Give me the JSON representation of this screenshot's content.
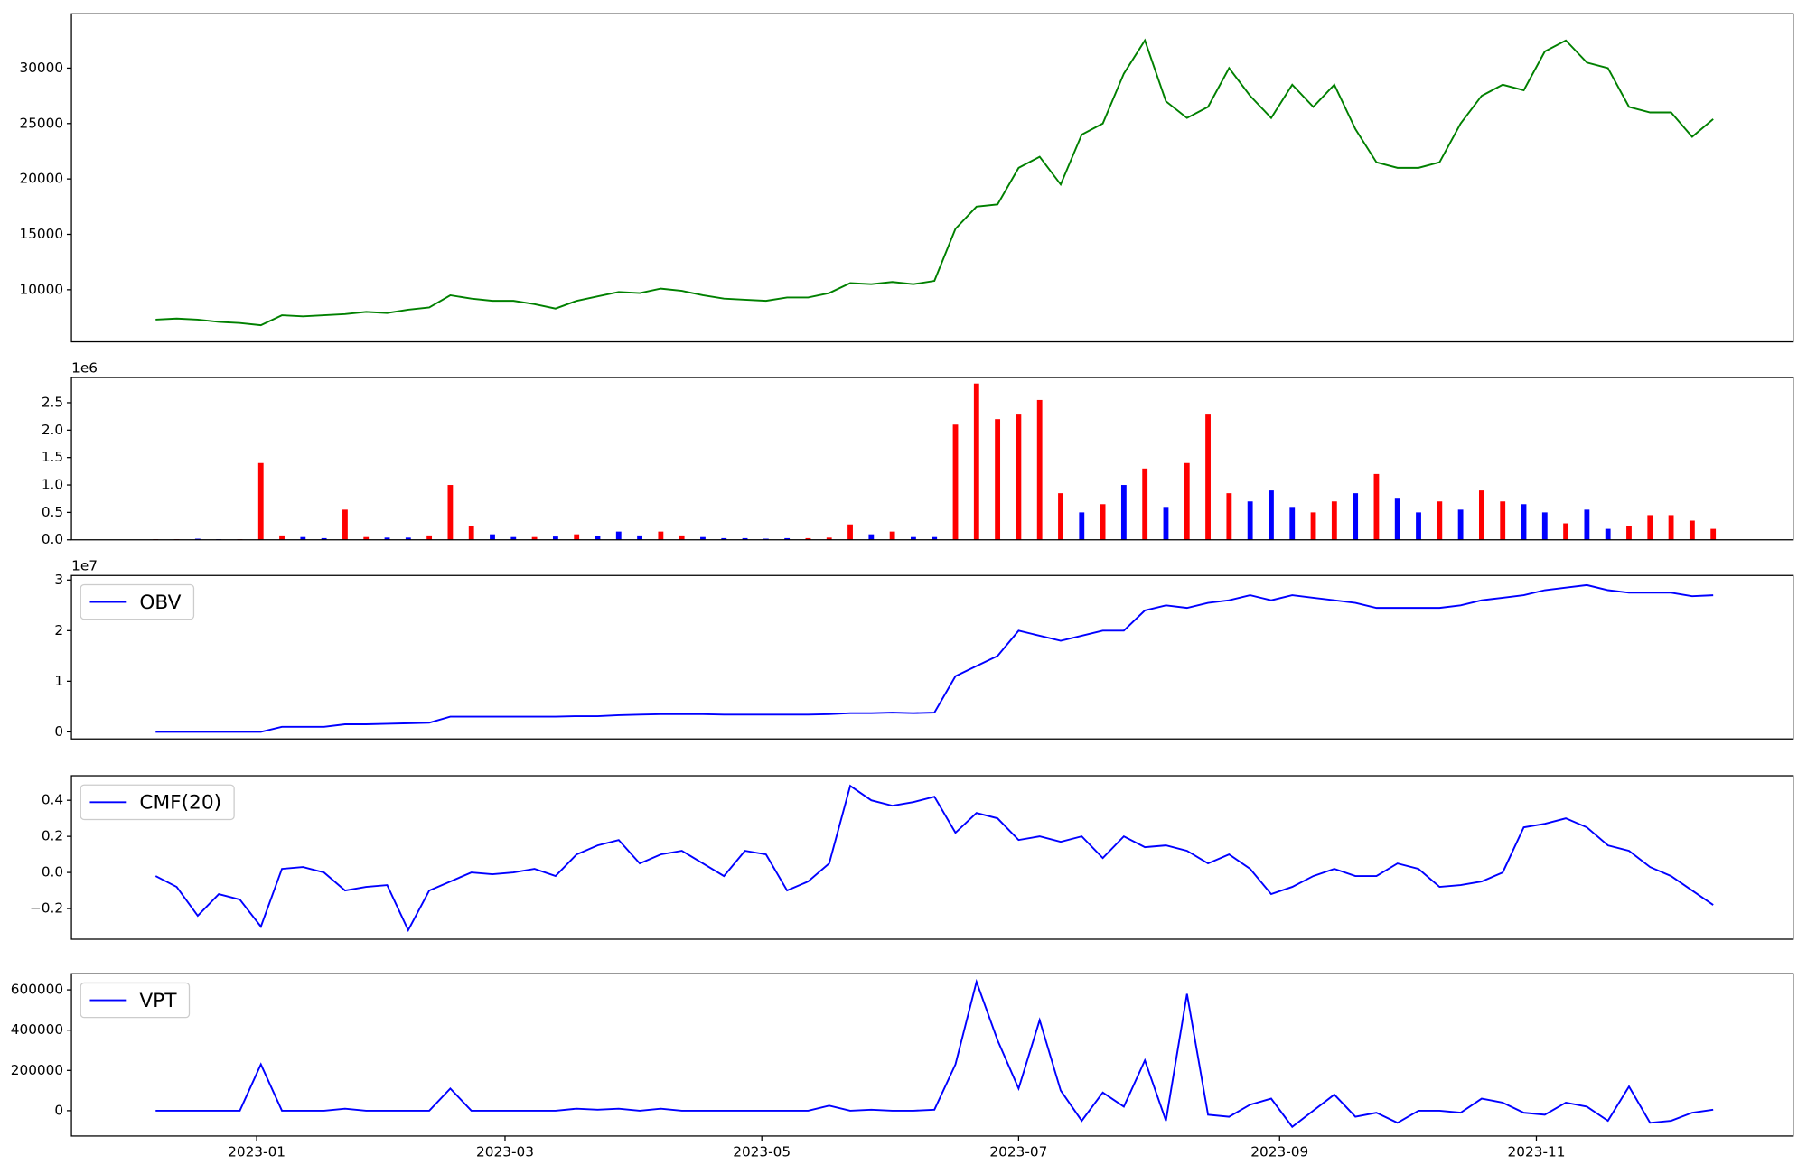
{
  "chart_data": [
    {
      "type": "line",
      "xlim": [
        -4,
        77.8
      ],
      "ylim": [
        5300,
        34900
      ],
      "yticks": [
        10000,
        15000,
        20000,
        25000,
        30000
      ],
      "series": [
        {
          "color": "#008000",
          "values": [
            7300,
            7400,
            7300,
            7100,
            7000,
            6800,
            7700,
            7600,
            7700,
            7800,
            8000,
            7900,
            8200,
            8400,
            9500,
            9200,
            9000,
            9000,
            8700,
            8300,
            9000,
            9400,
            9800,
            9700,
            10100,
            9900,
            9500,
            9200,
            9100,
            9000,
            9300,
            9300,
            9700,
            10600,
            10500,
            10700,
            10500,
            10800,
            15500,
            17500,
            17700,
            21000,
            22000,
            19500,
            24000,
            25000,
            29500,
            32500,
            27000,
            25500,
            26500,
            30000,
            27500,
            25500,
            28500,
            26500,
            28500,
            24500,
            21500,
            21000,
            21000,
            21500,
            25000,
            27500,
            28500,
            28000,
            31500,
            32500,
            30500,
            30000,
            26500,
            26000,
            26000,
            23800,
            25400
          ]
        }
      ]
    },
    {
      "type": "bar",
      "xlim": [
        -4,
        77.8
      ],
      "ylim": [
        0,
        2960000
      ],
      "offset_label": "1e6",
      "yticks": [
        {
          "value": 0,
          "label": "0.0"
        },
        {
          "value": 500000,
          "label": "0.5"
        },
        {
          "value": 1000000,
          "label": "1.0"
        },
        {
          "value": 1500000,
          "label": "1.5"
        },
        {
          "value": 2000000,
          "label": "2.0"
        },
        {
          "value": 2500000,
          "label": "2.5"
        }
      ],
      "values": [
        10000,
        10000,
        20000,
        10000,
        10000,
        1400000,
        80000,
        50000,
        30000,
        550000,
        50000,
        40000,
        40000,
        80000,
        1000000,
        250000,
        100000,
        50000,
        50000,
        60000,
        100000,
        70000,
        150000,
        80000,
        150000,
        80000,
        50000,
        30000,
        30000,
        20000,
        30000,
        30000,
        40000,
        280000,
        100000,
        150000,
        50000,
        50000,
        2100000,
        2850000,
        2200000,
        2300000,
        2550000,
        850000,
        500000,
        650000,
        1000000,
        1300000,
        600000,
        1400000,
        2300000,
        850000,
        700000,
        900000,
        600000,
        500000,
        700000,
        850000,
        1200000,
        750000,
        500000,
        700000,
        550000,
        900000,
        700000,
        650000,
        500000,
        300000,
        550000,
        200000,
        250000,
        450000,
        450000,
        350000,
        200000
      ],
      "colors": [
        "#ff0000",
        "#ff0000",
        "#0000ff",
        "#0000ff",
        "#ff0000",
        "#ff0000",
        "#ff0000",
        "#0000ff",
        "#0000ff",
        "#ff0000",
        "#ff0000",
        "#0000ff",
        "#0000ff",
        "#ff0000",
        "#ff0000",
        "#ff0000",
        "#0000ff",
        "#0000ff",
        "#ff0000",
        "#0000ff",
        "#ff0000",
        "#0000ff",
        "#0000ff",
        "#0000ff",
        "#ff0000",
        "#ff0000",
        "#0000ff",
        "#0000ff",
        "#0000ff",
        "#0000ff",
        "#0000ff",
        "#ff0000",
        "#ff0000",
        "#ff0000",
        "#0000ff",
        "#ff0000",
        "#0000ff",
        "#0000ff",
        "#ff0000",
        "#ff0000",
        "#ff0000",
        "#ff0000",
        "#ff0000",
        "#ff0000",
        "#0000ff",
        "#ff0000",
        "#0000ff",
        "#ff0000",
        "#0000ff",
        "#ff0000",
        "#ff0000",
        "#ff0000",
        "#0000ff",
        "#0000ff",
        "#0000ff",
        "#ff0000",
        "#ff0000",
        "#0000ff",
        "#ff0000",
        "#0000ff",
        "#0000ff",
        "#ff0000",
        "#0000ff",
        "#ff0000",
        "#ff0000",
        "#0000ff",
        "#0000ff",
        "#ff0000",
        "#0000ff",
        "#0000ff",
        "#ff0000",
        "#ff0000",
        "#ff0000",
        "#ff0000",
        "#ff0000"
      ]
    },
    {
      "type": "line",
      "xlim": [
        -4,
        77.8
      ],
      "ylim": [
        -1400000,
        30900000
      ],
      "offset_label": "1e7",
      "legend": "upper left",
      "yticks": [
        {
          "value": 0,
          "label": "0"
        },
        {
          "value": 10000000,
          "label": "1"
        },
        {
          "value": 20000000,
          "label": "2"
        },
        {
          "value": 30000000,
          "label": "3"
        }
      ],
      "series": [
        {
          "name": "OBV",
          "color": "#0000ff",
          "values": [
            0,
            0,
            0,
            0,
            0,
            0,
            1000000,
            1000000,
            1000000,
            1500000,
            1500000,
            1600000,
            1700000,
            1800000,
            3000000,
            3000000,
            3000000,
            3000000,
            3000000,
            3000000,
            3100000,
            3100000,
            3300000,
            3400000,
            3500000,
            3500000,
            3500000,
            3400000,
            3400000,
            3400000,
            3400000,
            3400000,
            3500000,
            3700000,
            3700000,
            3800000,
            3700000,
            3800000,
            11000000,
            13000000,
            15000000,
            20000000,
            19000000,
            18000000,
            19000000,
            20000000,
            20000000,
            24000000,
            25000000,
            24500000,
            25500000,
            26000000,
            27000000,
            26000000,
            27000000,
            26500000,
            26000000,
            25500000,
            24500000,
            24500000,
            24500000,
            24500000,
            25000000,
            26000000,
            26500000,
            27000000,
            28000000,
            28500000,
            29000000,
            28000000,
            27500000,
            27500000,
            27500000,
            26800000,
            27000000
          ]
        }
      ]
    },
    {
      "type": "line",
      "xlim": [
        -4,
        77.8
      ],
      "ylim": [
        -0.37,
        0.536
      ],
      "legend": "upper left",
      "yticks": [
        {
          "value": -0.2,
          "label": "−0.2"
        },
        {
          "value": 0,
          "label": "0.0"
        },
        0.2,
        0.4
      ],
      "series": [
        {
          "name": "CMF(20)",
          "color": "#0000ff",
          "values": [
            -0.02,
            -0.08,
            -0.24,
            -0.12,
            -0.15,
            -0.3,
            0.02,
            0.03,
            0,
            -0.1,
            -0.08,
            -0.07,
            -0.32,
            -0.1,
            -0.05,
            0,
            -0.01,
            0,
            0.02,
            -0.02,
            0.1,
            0.15,
            0.18,
            0.05,
            0.1,
            0.12,
            0.05,
            -0.02,
            0.12,
            0.1,
            -0.1,
            -0.05,
            0.05,
            0.48,
            0.4,
            0.37,
            0.39,
            0.42,
            0.22,
            0.33,
            0.3,
            0.18,
            0.2,
            0.17,
            0.2,
            0.08,
            0.2,
            0.14,
            0.15,
            0.12,
            0.05,
            0.1,
            0.02,
            -0.12,
            -0.08,
            -0.02,
            0.02,
            -0.02,
            -0.02,
            0.05,
            0.02,
            -0.08,
            -0.07,
            -0.05,
            0,
            0.25,
            0.27,
            0.3,
            0.25,
            0.15,
            0.12,
            0.03,
            -0.02,
            -0.1,
            -0.18
          ]
        }
      ]
    },
    {
      "type": "line",
      "xlim": [
        -4,
        77.8
      ],
      "ylim": [
        -125700,
        680000
      ],
      "legend": "upper left",
      "yticks": [
        0,
        200000,
        400000,
        600000
      ],
      "xticks": [
        {
          "value": 4.8,
          "label": "2023-01"
        },
        {
          "value": 16.6,
          "label": "2023-03"
        },
        {
          "value": 28.8,
          "label": "2023-05"
        },
        {
          "value": 41,
          "label": "2023-07"
        },
        {
          "value": 53.4,
          "label": "2023-09"
        },
        {
          "value": 65.6,
          "label": "2023-11"
        }
      ],
      "series": [
        {
          "name": "VPT",
          "color": "#0000ff",
          "values": [
            0,
            0,
            0,
            0,
            0,
            230000,
            0,
            0,
            0,
            10000,
            0,
            0,
            0,
            0,
            110000,
            0,
            0,
            0,
            0,
            0,
            10000,
            5000,
            10000,
            0,
            10000,
            0,
            0,
            0,
            0,
            0,
            0,
            0,
            25000,
            0,
            5000,
            0,
            0,
            5000,
            230000,
            640000,
            350000,
            110000,
            450000,
            100000,
            -50000,
            90000,
            20000,
            250000,
            -50000,
            580000,
            -20000,
            -30000,
            30000,
            60000,
            -80000,
            0,
            80000,
            -30000,
            -10000,
            -60000,
            0,
            0,
            -10000,
            60000,
            40000,
            -10000,
            -20000,
            40000,
            20000,
            -50000,
            120000,
            -60000,
            -50000,
            -10000,
            5000
          ]
        }
      ]
    }
  ]
}
